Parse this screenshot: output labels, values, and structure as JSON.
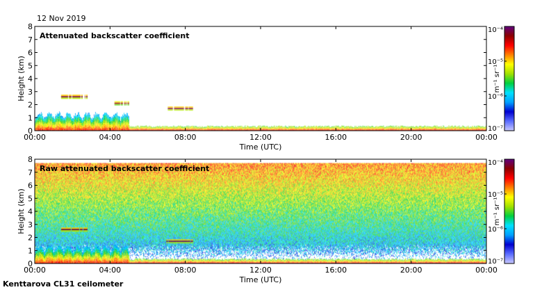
{
  "date_label": "12 Nov 2019",
  "footer_label": "Kenttarova CL31 ceilometer",
  "colormap": [
    "#ffffff",
    "#c8c8ff",
    "#5a6cff",
    "#0000d0",
    "#00a0ff",
    "#00e0ff",
    "#00d040",
    "#a0e000",
    "#ffff00",
    "#ff8000",
    "#ff0000",
    "#8c0000",
    "#600080"
  ],
  "chart_data": [
    {
      "type": "heatmap",
      "title": "Attenuated backscatter coefficient",
      "xlabel": "Time (UTC)",
      "ylabel": "Height (km)",
      "x_ticks": [
        "00:00",
        "04:00",
        "08:00",
        "12:00",
        "16:00",
        "20:00",
        "00:00"
      ],
      "y_ticks": [
        0,
        1,
        2,
        3,
        4,
        5,
        6,
        7,
        8
      ],
      "xlim_hours": [
        0,
        24
      ],
      "ylim_km": [
        0,
        8
      ],
      "colorbar": {
        "label": "m⁻¹ sr⁻¹",
        "scale": "log",
        "ticks": [
          "10⁻⁷",
          "10⁻⁶",
          "10⁻⁵",
          "10⁻⁴"
        ],
        "range": [
          1e-07,
          0.0001
        ]
      },
      "features": [
        {
          "name": "boundary-layer-aerosol",
          "t_start_h": 0.0,
          "t_end_h": 5.0,
          "height_top_km": 1.6,
          "level": 0.8
        },
        {
          "name": "low-cloud-layer",
          "t_start_h": 1.4,
          "t_end_h": 2.8,
          "height_km": 2.6,
          "level": 0.95
        },
        {
          "name": "low-cloud-layer",
          "t_start_h": 4.2,
          "t_end_h": 5.0,
          "height_km": 2.1,
          "level": 0.9
        },
        {
          "name": "cloud-layer",
          "t_start_h": 7.0,
          "t_end_h": 8.4,
          "height_km": 1.7,
          "level": 0.95
        },
        {
          "name": "surface-layer",
          "t_start_h": 5.0,
          "t_end_h": 24.0,
          "height_top_km": 0.4,
          "level": 0.85
        }
      ]
    },
    {
      "type": "heatmap",
      "title": "Raw attenuated backscatter coefficient",
      "xlabel": "Time (UTC)",
      "ylabel": "Height (km)",
      "x_ticks": [
        "00:00",
        "04:00",
        "08:00",
        "12:00",
        "16:00",
        "20:00",
        "00:00"
      ],
      "y_ticks": [
        0,
        1,
        2,
        3,
        4,
        5,
        6,
        7,
        8
      ],
      "xlim_hours": [
        0,
        24
      ],
      "ylim_km": [
        0,
        8
      ],
      "colorbar": {
        "label": "m⁻¹ sr⁻¹",
        "scale": "log",
        "ticks": [
          "10⁻⁷",
          "10⁻⁶",
          "10⁻⁵",
          "10⁻⁴"
        ],
        "range": [
          1e-07,
          0.0001
        ]
      },
      "features": [
        {
          "name": "noise-field",
          "t_start_h": 0.0,
          "t_end_h": 24.0,
          "height_bottom_km": 1.5,
          "height_top_km": 7.7,
          "level_top": 0.75,
          "level_bottom": 0.3
        },
        {
          "name": "boundary-layer-aerosol",
          "t_start_h": 0.0,
          "t_end_h": 5.0,
          "height_top_km": 1.6,
          "level": 0.8
        },
        {
          "name": "low-cloud-layer",
          "t_start_h": 1.4,
          "t_end_h": 2.8,
          "height_km": 2.6,
          "level": 0.95
        },
        {
          "name": "cloud-layer",
          "t_start_h": 7.0,
          "t_end_h": 8.4,
          "height_km": 1.7,
          "level": 0.95
        },
        {
          "name": "surface-layer",
          "t_start_h": 5.0,
          "t_end_h": 24.0,
          "height_top_km": 0.4,
          "level": 0.85
        }
      ]
    }
  ]
}
